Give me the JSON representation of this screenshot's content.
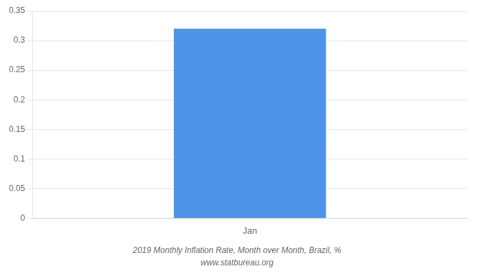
{
  "chart_data": {
    "type": "bar",
    "title": "2019 Monthly Inflation Rate, Month over Month, Brazil, %",
    "subtitle": "www.statbureau.org",
    "categories": [
      "Jan"
    ],
    "values": [
      0.32
    ],
    "color": "#4d94e8",
    "ylim": [
      0,
      0.35
    ],
    "yticks": [
      0,
      0.05,
      0.1,
      0.15,
      0.2,
      0.25,
      0.3,
      0.35
    ],
    "grid": true
  }
}
